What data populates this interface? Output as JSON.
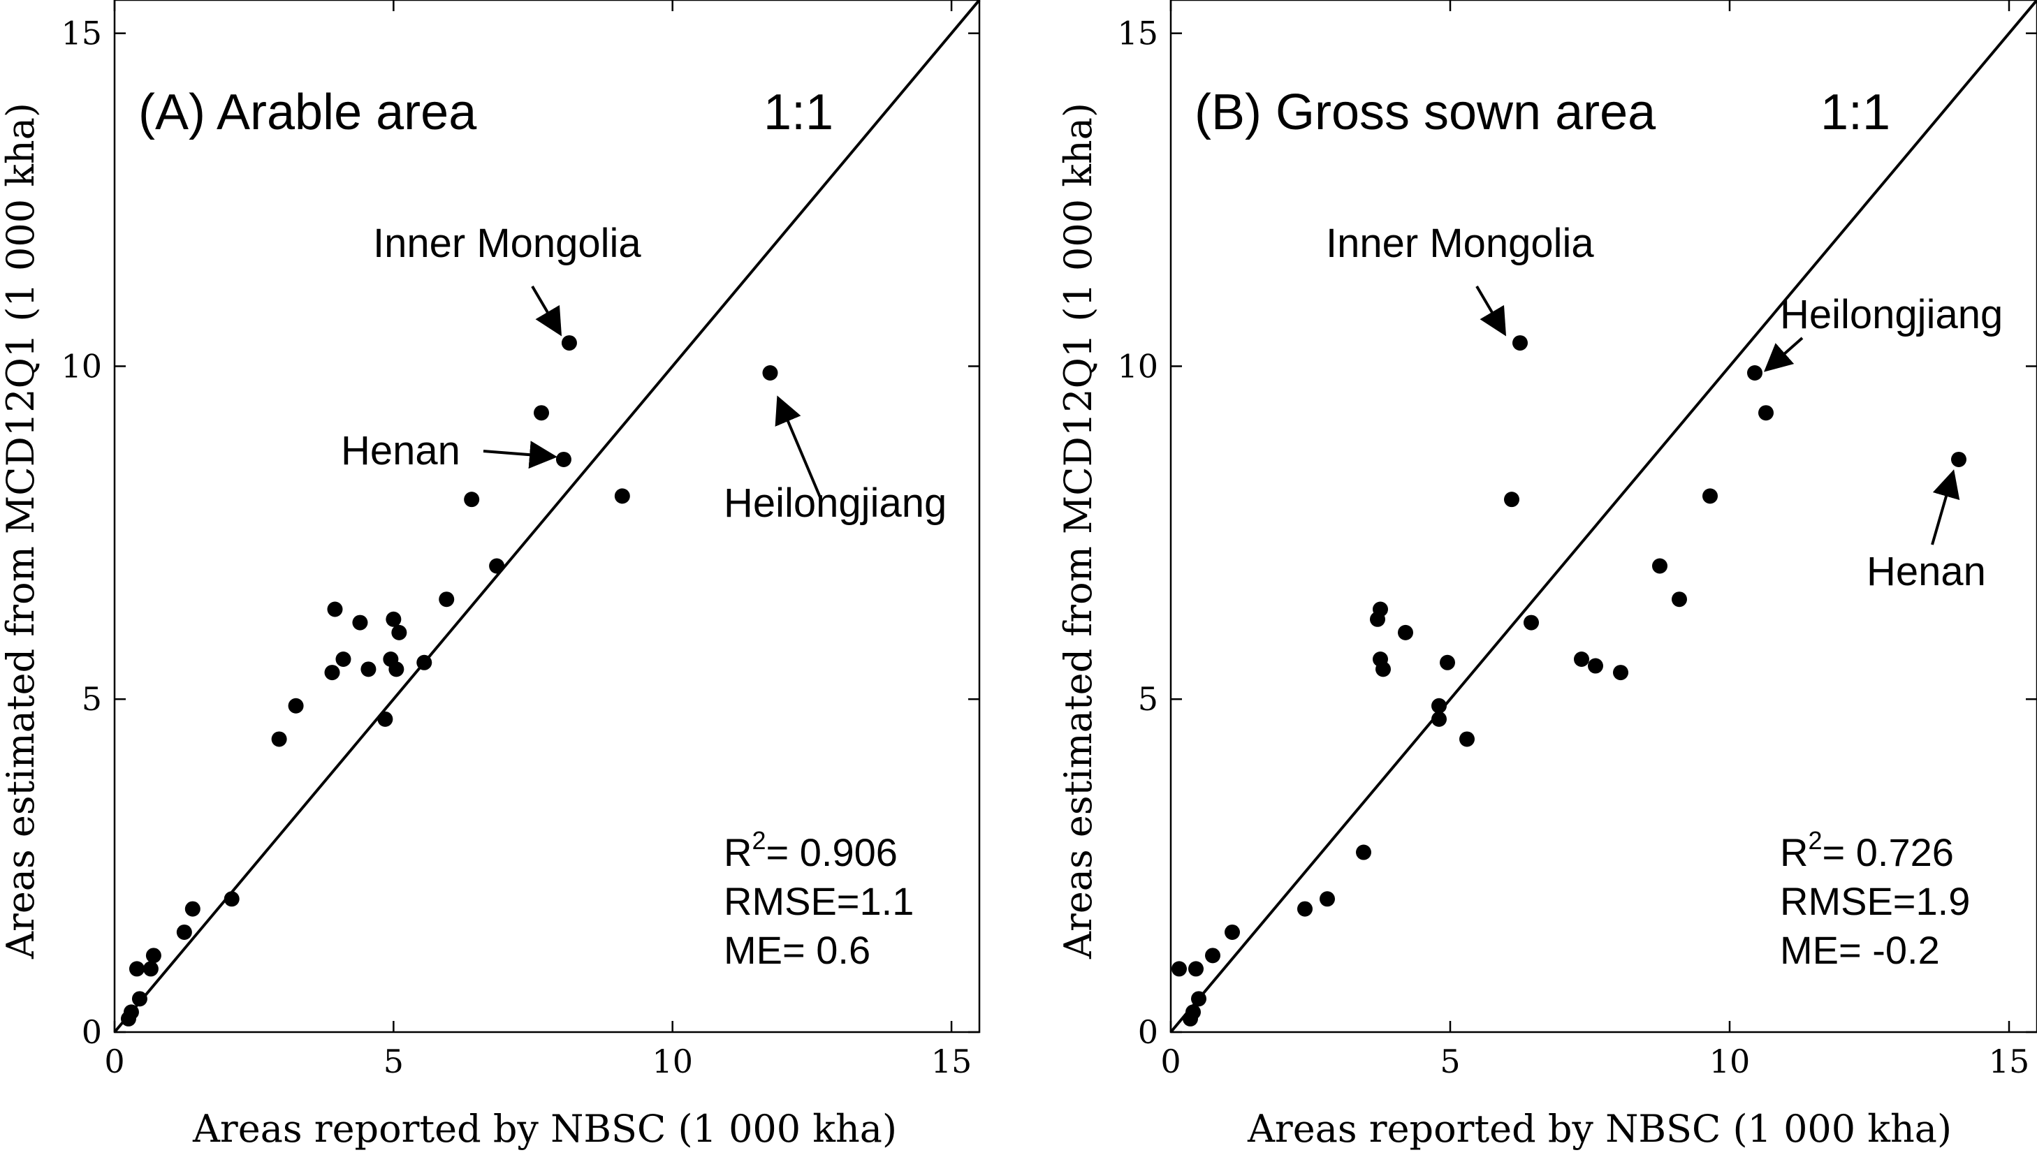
{
  "chart_data": [
    {
      "type": "scatter",
      "id": "A",
      "title": "(A) Arable area",
      "xlabel": "Areas reported by NBSC (1 000 kha)",
      "ylabel": "Areas estimated from MCD12Q1 (1 000 kha)",
      "xlim": [
        0,
        15.5
      ],
      "ylim": [
        0,
        15.5
      ],
      "xticks": [
        0,
        5,
        10,
        15
      ],
      "yticks": [
        0,
        5,
        10,
        15
      ],
      "reference_line_label": "1:1",
      "points": [
        [
          0.25,
          0.2
        ],
        [
          0.3,
          0.3
        ],
        [
          0.4,
          0.95
        ],
        [
          0.45,
          0.5
        ],
        [
          0.65,
          0.95
        ],
        [
          0.7,
          1.15
        ],
        [
          1.25,
          1.5
        ],
        [
          1.4,
          1.85
        ],
        [
          2.1,
          2.0
        ],
        [
          2.95,
          4.4
        ],
        [
          3.25,
          4.9
        ],
        [
          3.9,
          5.4
        ],
        [
          3.95,
          6.35
        ],
        [
          4.1,
          5.6
        ],
        [
          4.4,
          6.15
        ],
        [
          4.55,
          5.45
        ],
        [
          4.85,
          4.7
        ],
        [
          4.95,
          5.6
        ],
        [
          5.0,
          6.2
        ],
        [
          5.05,
          5.45
        ],
        [
          5.1,
          6.0
        ],
        [
          5.55,
          5.55
        ],
        [
          5.95,
          6.5
        ],
        [
          6.4,
          8.0
        ],
        [
          6.85,
          7.0
        ],
        [
          7.65,
          9.3
        ],
        [
          8.05,
          8.6
        ],
        [
          8.15,
          10.35
        ],
        [
          9.1,
          8.05
        ],
        [
          11.75,
          9.9
        ]
      ],
      "annotations": [
        {
          "label": "Inner Mongolia",
          "x": 8.15,
          "y": 10.35
        },
        {
          "label": "Henan",
          "x": 8.05,
          "y": 8.6
        },
        {
          "label": "Heilongjiang",
          "x": 11.75,
          "y": 9.9
        }
      ],
      "stats": {
        "r2_prefix": "R",
        "r2_sup": "2",
        "r2_value": "= 0.906",
        "rmse": "RMSE=1.1",
        "me": "ME= 0.6"
      }
    },
    {
      "type": "scatter",
      "id": "B",
      "title": "(B) Gross sown area",
      "xlabel": "Areas reported by NBSC (1 000 kha)",
      "ylabel": "Areas estimated from MCD12Q1 (1 000 kha)",
      "xlim": [
        0,
        15.5
      ],
      "ylim": [
        0,
        15.5
      ],
      "xticks": [
        0,
        5,
        10,
        15
      ],
      "yticks": [
        0,
        5,
        10,
        15
      ],
      "reference_line_label": "1:1",
      "points": [
        [
          0.15,
          0.95
        ],
        [
          0.35,
          0.2
        ],
        [
          0.4,
          0.3
        ],
        [
          0.45,
          0.95
        ],
        [
          0.5,
          0.5
        ],
        [
          0.75,
          1.15
        ],
        [
          1.1,
          1.5
        ],
        [
          2.4,
          1.85
        ],
        [
          2.8,
          2.0
        ],
        [
          3.45,
          2.7
        ],
        [
          3.7,
          6.2
        ],
        [
          3.75,
          5.6
        ],
        [
          3.75,
          6.35
        ],
        [
          3.8,
          5.45
        ],
        [
          4.2,
          6.0
        ],
        [
          4.8,
          4.9
        ],
        [
          4.8,
          4.7
        ],
        [
          4.95,
          5.55
        ],
        [
          5.3,
          4.4
        ],
        [
          6.1,
          8.0
        ],
        [
          6.25,
          10.35
        ],
        [
          6.45,
          6.15
        ],
        [
          7.35,
          5.6
        ],
        [
          7.6,
          5.5
        ],
        [
          8.05,
          5.4
        ],
        [
          8.75,
          7.0
        ],
        [
          9.1,
          6.5
        ],
        [
          9.65,
          8.05
        ],
        [
          10.45,
          9.9
        ],
        [
          10.65,
          9.3
        ],
        [
          14.1,
          8.6
        ]
      ],
      "annotations": [
        {
          "label": "Inner Mongolia",
          "x": 6.25,
          "y": 10.35
        },
        {
          "label": "Heilongjiang",
          "x": 10.45,
          "y": 9.9
        },
        {
          "label": "Henan",
          "x": 14.1,
          "y": 8.6
        }
      ],
      "stats": {
        "r2_prefix": "R",
        "r2_sup": "2",
        "r2_value": "= 0.726",
        "rmse": "RMSE=1.9",
        "me": "ME= -0.2"
      }
    }
  ]
}
